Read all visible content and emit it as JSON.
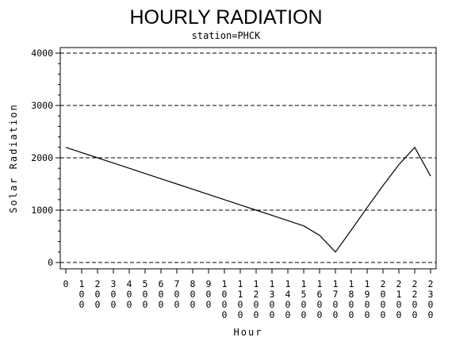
{
  "chart_data": {
    "type": "line",
    "title": "HOURLY RADIATION",
    "subtitle": "station=PHCK",
    "xlabel": "Hour",
    "ylabel": "Solar Radiation",
    "xlim": [
      0,
      2300
    ],
    "ylim": [
      0,
      4000
    ],
    "x_ticks": [
      "0",
      "100",
      "200",
      "300",
      "400",
      "500",
      "600",
      "700",
      "800",
      "900",
      "1000",
      "1100",
      "1200",
      "1300",
      "1400",
      "1500",
      "1600",
      "1700",
      "1800",
      "1900",
      "2000",
      "2100",
      "2200",
      "2300"
    ],
    "y_ticks": [
      "0",
      "1000",
      "2000",
      "3000",
      "4000"
    ],
    "grid": "horizontal dashed",
    "legend": "none",
    "line_color": "#000000",
    "series": [
      {
        "x": [
          0,
          100,
          200,
          300,
          400,
          500,
          600,
          700,
          800,
          900,
          1000,
          1100,
          1200,
          1300,
          1400,
          1500,
          1600,
          1700,
          1800,
          1900,
          2000,
          2100,
          2200,
          2300
        ],
        "y": [
          2200,
          2100,
          2000,
          1900,
          1800,
          1700,
          1600,
          1500,
          1400,
          1300,
          1200,
          1100,
          1000,
          900,
          800,
          700,
          520,
          200,
          620,
          1050,
          1470,
          1870,
          2200,
          1650
        ]
      }
    ]
  }
}
